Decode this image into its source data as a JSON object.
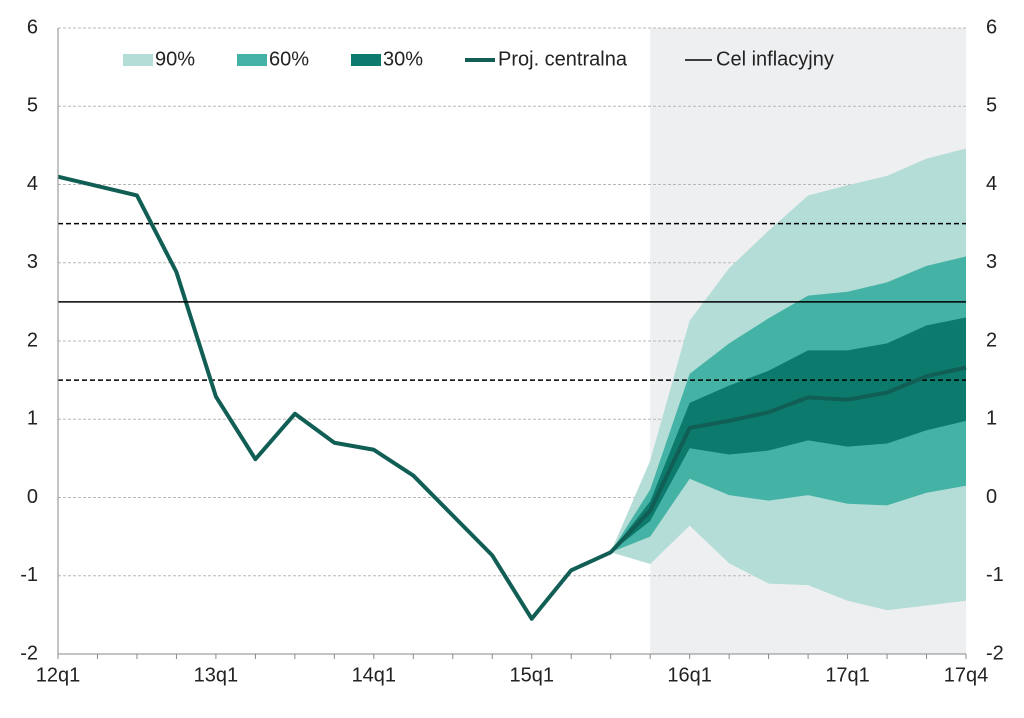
{
  "chart_data": {
    "type": "fan",
    "categories": [
      "12q1",
      null,
      null,
      null,
      "13q1",
      null,
      null,
      null,
      "14q1",
      null,
      null,
      null,
      "15q1",
      null,
      null,
      null,
      "16q1",
      null,
      null,
      null,
      "17q1",
      null,
      null,
      "17q4"
    ],
    "ylim": [
      -2,
      6
    ],
    "yticks": [
      -2,
      -1,
      0,
      1,
      2,
      3,
      4,
      5,
      6
    ],
    "grid": true,
    "bands": [
      {
        "name": "90%",
        "color": "#b3ddd6",
        "upper": [
          null,
          null,
          null,
          null,
          null,
          null,
          null,
          null,
          null,
          null,
          null,
          null,
          null,
          null,
          -0.7,
          0.47,
          2.26,
          2.93,
          3.41,
          3.86,
          3.99,
          4.11,
          4.33,
          4.46
        ],
        "lower": [
          null,
          null,
          null,
          null,
          null,
          null,
          null,
          null,
          null,
          null,
          null,
          null,
          null,
          null,
          -0.7,
          -0.85,
          -0.36,
          -0.84,
          -1.1,
          -1.12,
          -1.32,
          -1.44,
          -1.38,
          -1.32
        ]
      },
      {
        "name": "60%",
        "color": "#44b2a5",
        "upper": [
          null,
          null,
          null,
          null,
          null,
          null,
          null,
          null,
          null,
          null,
          null,
          null,
          null,
          null,
          -0.7,
          0.1,
          1.58,
          1.97,
          2.29,
          2.58,
          2.63,
          2.75,
          2.96,
          3.08
        ],
        "lower": [
          null,
          null,
          null,
          null,
          null,
          null,
          null,
          null,
          null,
          null,
          null,
          null,
          null,
          null,
          -0.7,
          -0.5,
          0.24,
          0.03,
          -0.04,
          0.03,
          -0.08,
          -0.1,
          0.06,
          0.15
        ]
      },
      {
        "name": "30%",
        "color": "#0c7a6d",
        "upper": [
          null,
          null,
          null,
          null,
          null,
          null,
          null,
          null,
          null,
          null,
          null,
          null,
          null,
          null,
          -0.7,
          -0.05,
          1.21,
          1.43,
          1.62,
          1.88,
          1.88,
          1.97,
          2.2,
          2.3
        ],
        "lower": [
          null,
          null,
          null,
          null,
          null,
          null,
          null,
          null,
          null,
          null,
          null,
          null,
          null,
          null,
          -0.7,
          -0.3,
          0.63,
          0.55,
          0.6,
          0.73,
          0.65,
          0.69,
          0.86,
          0.98
        ]
      }
    ],
    "series": [
      {
        "name": "Proj. centralna",
        "color": "#115e55",
        "values": [
          4.1,
          3.98,
          3.86,
          2.88,
          1.29,
          0.49,
          1.07,
          0.7,
          0.61,
          0.28,
          -0.23,
          -0.74,
          -1.55,
          -0.93,
          -0.7,
          -0.17,
          0.89,
          0.98,
          1.09,
          1.28,
          1.25,
          1.34,
          1.55,
          1.66
        ]
      },
      {
        "name": "Cel inflacyjny",
        "color": "#000000",
        "values": [
          2.5,
          2.5,
          2.5,
          2.5,
          2.5,
          2.5,
          2.5,
          2.5,
          2.5,
          2.5,
          2.5,
          2.5,
          2.5,
          2.5,
          2.5,
          2.5,
          2.5,
          2.5,
          2.5,
          2.5,
          2.5,
          2.5,
          2.5,
          2.5
        ]
      }
    ],
    "tolerance_band": [
      1.5,
      3.5
    ]
  }
}
